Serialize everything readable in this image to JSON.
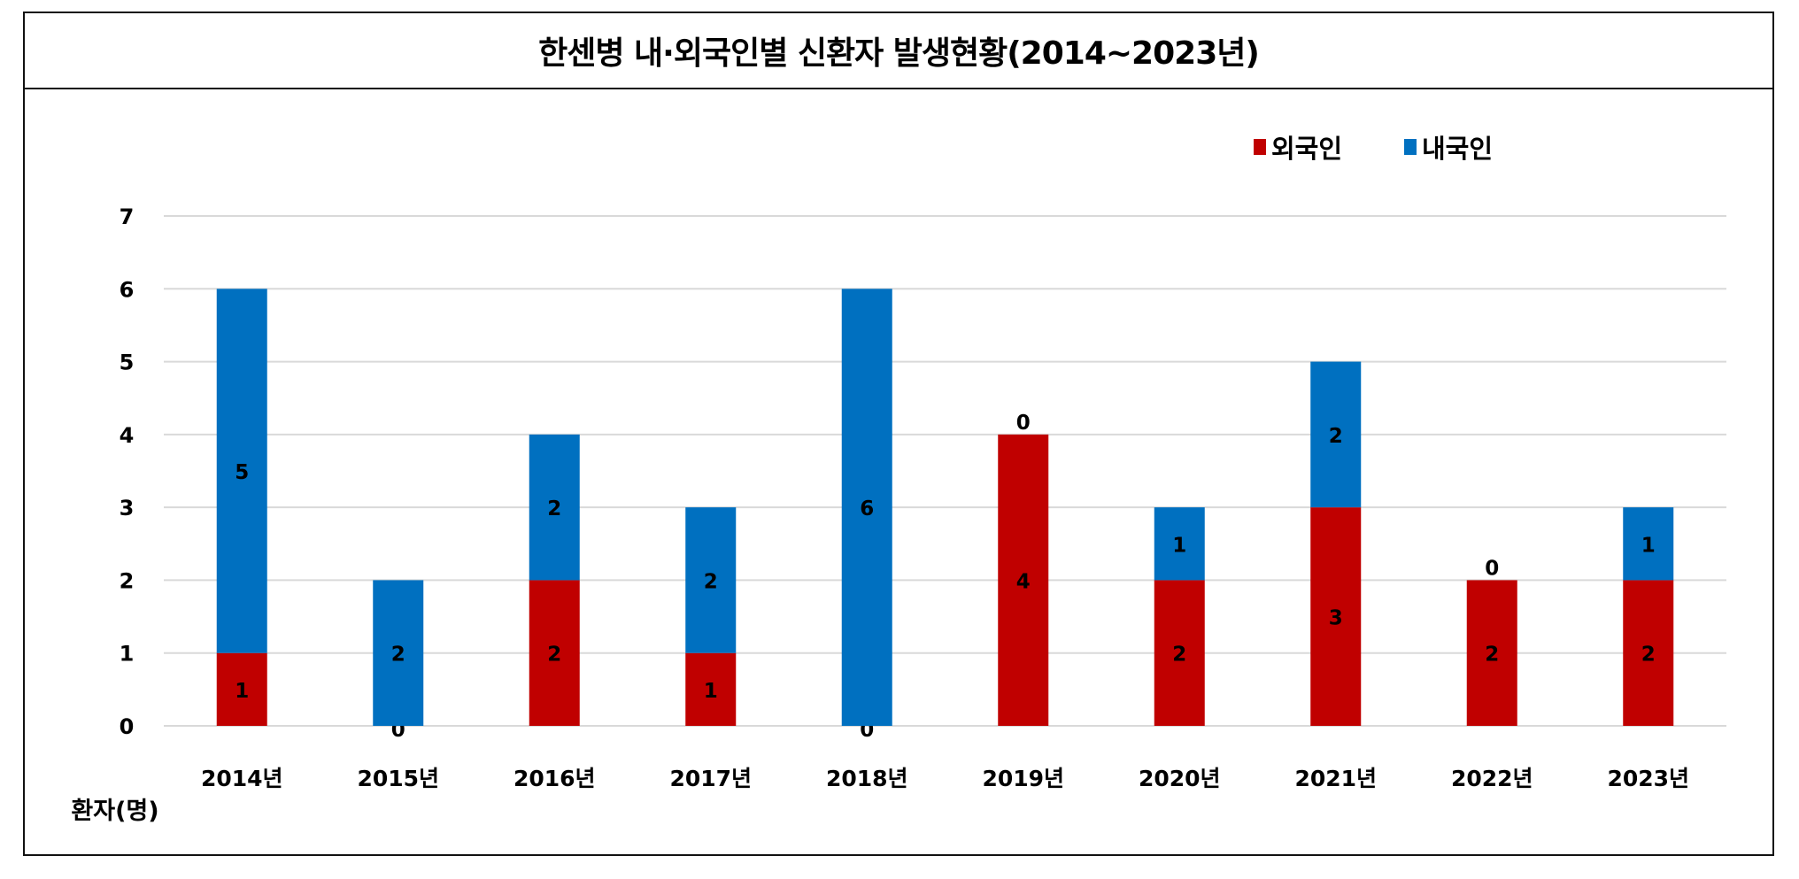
{
  "chart_data": {
    "type": "bar",
    "stacked": true,
    "title": "한센병 내·외국인별 신환자 발생현황(2014~2023년)",
    "xlabel": "",
    "ylabel": "환자(명)",
    "categories": [
      "2014년",
      "2015년",
      "2016년",
      "2017년",
      "2018년",
      "2019년",
      "2020년",
      "2021년",
      "2022년",
      "2023년"
    ],
    "series": [
      {
        "name": "외국인",
        "color": "#C00000",
        "values": [
          1,
          0,
          2,
          1,
          0,
          4,
          2,
          3,
          2,
          2
        ]
      },
      {
        "name": "내국인",
        "color": "#0070C0",
        "values": [
          5,
          2,
          2,
          2,
          6,
          0,
          1,
          2,
          0,
          1
        ]
      }
    ],
    "ylim": [
      0,
      7
    ],
    "yticks": [
      "0",
      "1",
      "2",
      "3",
      "4",
      "5",
      "6",
      "7"
    ],
    "grid": true,
    "legend": "top-right",
    "data_labels": true
  }
}
